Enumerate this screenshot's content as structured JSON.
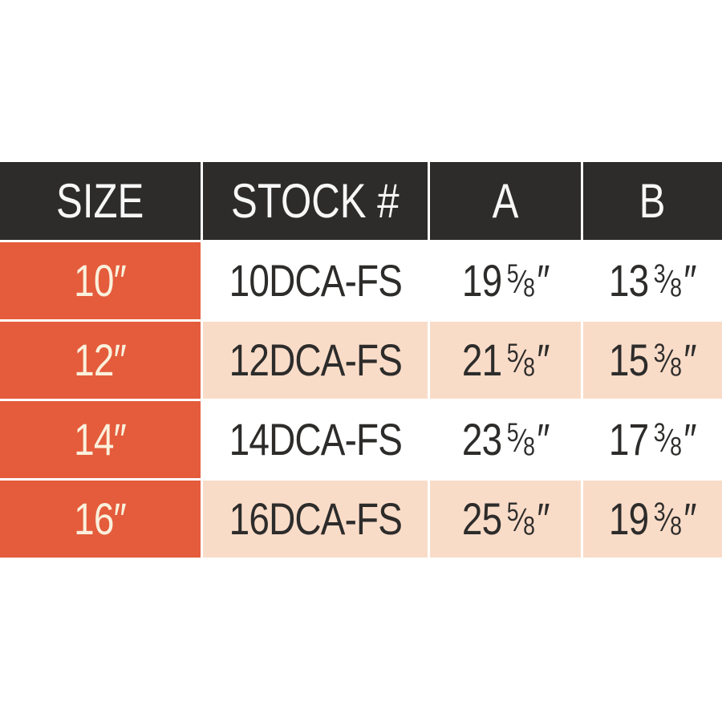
{
  "colors": {
    "header_bg": "#2d2c2b",
    "accent_orange": "#e45c3c",
    "row_alt_peach": "#f9dcc8",
    "row_white": "#ffffff",
    "text_dark": "#2d2c2b",
    "text_cream": "#faf0dc",
    "text_white": "#f7f7f7"
  },
  "glyphs": {
    "inch_mark": "″",
    "fraction_slash": "⁄"
  },
  "table": {
    "headers": [
      "SIZE",
      "STOCK #",
      "A",
      "B"
    ],
    "rows": [
      {
        "size": "10″",
        "stock": "10DCA-FS",
        "a": {
          "whole": "19",
          "num": "5",
          "den": "8"
        },
        "b": {
          "whole": "13",
          "num": "3",
          "den": "8"
        }
      },
      {
        "size": "12″",
        "stock": "12DCA-FS",
        "a": {
          "whole": "21",
          "num": "5",
          "den": "8"
        },
        "b": {
          "whole": "15",
          "num": "3",
          "den": "8"
        }
      },
      {
        "size": "14″",
        "stock": "14DCA-FS",
        "a": {
          "whole": "23",
          "num": "5",
          "den": "8"
        },
        "b": {
          "whole": "17",
          "num": "3",
          "den": "8"
        }
      },
      {
        "size": "16″",
        "stock": "16DCA-FS",
        "a": {
          "whole": "25",
          "num": "5",
          "den": "8"
        },
        "b": {
          "whole": "19",
          "num": "3",
          "den": "8"
        }
      }
    ]
  },
  "chart_data": {
    "type": "table",
    "title": "",
    "columns": [
      "SIZE",
      "STOCK #",
      "A",
      "B"
    ],
    "rows": [
      [
        "10″",
        "10DCA-FS",
        "19 5/8″",
        "13 3/8″"
      ],
      [
        "12″",
        "12DCA-FS",
        "21 5/8″",
        "15 3/8″"
      ],
      [
        "14″",
        "14DCA-FS",
        "23 5/8″",
        "17 3/8″"
      ],
      [
        "16″",
        "16DCA-FS",
        "25 5/8″",
        "19 3/8″"
      ]
    ],
    "layout_hints": {
      "header_style": "dark-bar",
      "first_column_style": "orange-accent",
      "row_striping": [
        "white",
        "peach",
        "white",
        "peach"
      ]
    }
  }
}
